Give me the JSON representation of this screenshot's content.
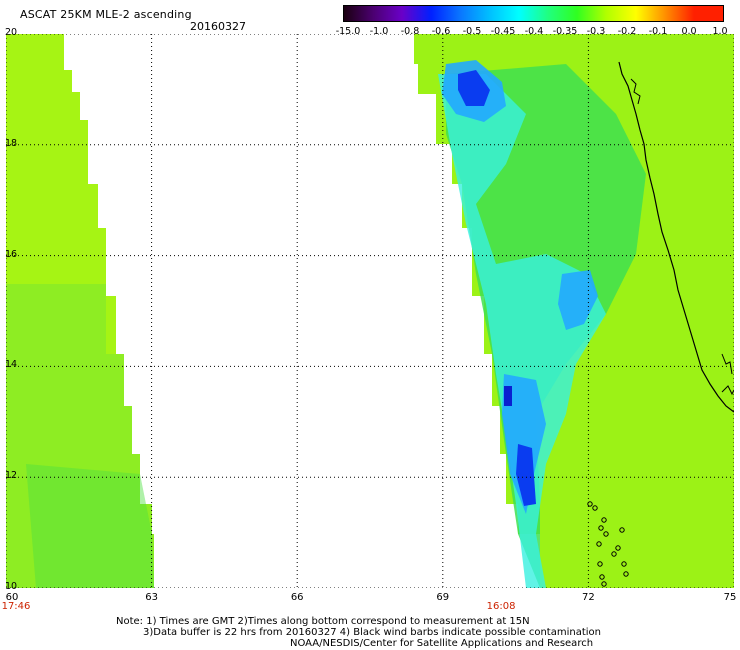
{
  "header": {
    "title": "ASCAT 25KM MLE-2 ascending",
    "date": "20160327"
  },
  "colorbar": {
    "labels": [
      "-15.0",
      "-1.0",
      "-0.8",
      "-0.6",
      "-0.5",
      "-0.45",
      "-0.4",
      "-0.35",
      "-0.3",
      "-0.2",
      "-0.1",
      "0.0",
      "1.0"
    ],
    "colors": [
      "#1a0010",
      "#4b0070",
      "#6a00c8",
      "#0020ff",
      "#0a78ff",
      "#00c0ff",
      "#00ffff",
      "#20ff80",
      "#30ff20",
      "#b0ff00",
      "#ffff00",
      "#ff9000",
      "#ff2000"
    ]
  },
  "map": {
    "lon_range": [
      60,
      75
    ],
    "lat_range": [
      10,
      20
    ],
    "lon_ticks": [
      "60",
      "63",
      "66",
      "69",
      "72",
      "75"
    ],
    "lat_ticks": [
      "10",
      "12",
      "14",
      "16",
      "18",
      "20"
    ],
    "pass_times": [
      {
        "label": "17:46",
        "lon": 60
      },
      {
        "label": "16:08",
        "lon": 70.2
      }
    ]
  },
  "notes": {
    "line1": "Note: 1) Times are GMT 2)Times along bottom correspond to measurement at 15N",
    "line2": "3)Data buffer is 22 hrs from 20160327 4) Black wind barbs indicate possible contamination",
    "line3": "NOAA/NESDIS/Center for Satellite Applications and Research"
  }
}
